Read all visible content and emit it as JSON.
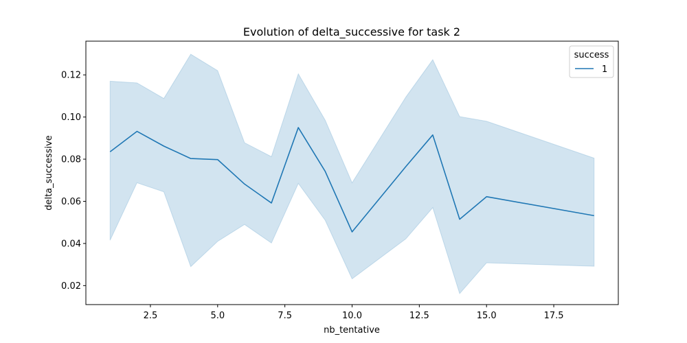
{
  "chart_data": {
    "type": "line",
    "title": "Evolution of delta_successive for task 2",
    "xlabel": "nb_tentative",
    "ylabel": "delta_successive",
    "xlim": [
      0.1,
      19.9
    ],
    "ylim": [
      0.011,
      0.136
    ],
    "x_ticks": [
      2.5,
      5.0,
      7.5,
      10.0,
      12.5,
      15.0,
      17.5
    ],
    "x_tick_labels": [
      "2.5",
      "5.0",
      "7.5",
      "10.0",
      "12.5",
      "15.0",
      "17.5"
    ],
    "y_ticks": [
      0.02,
      0.04,
      0.06,
      0.08,
      0.1,
      0.12
    ],
    "y_tick_labels": [
      "0.02",
      "0.04",
      "0.06",
      "0.08",
      "0.10",
      "0.12"
    ],
    "grid": false,
    "legend": {
      "title": "success",
      "position": "top-right"
    },
    "series": [
      {
        "name": "1",
        "color": "#1f77b4",
        "band_color": "#1f77b4",
        "x": [
          1,
          2,
          3,
          4,
          5,
          6,
          7,
          8,
          9,
          10,
          12,
          13,
          14,
          15,
          19
        ],
        "y": [
          0.0835,
          0.0932,
          0.0862,
          0.0803,
          0.0798,
          0.0682,
          0.0592,
          0.095,
          0.0742,
          0.0455,
          0.0765,
          0.0915,
          0.0515,
          0.0622,
          0.0532
        ],
        "lower": [
          0.0415,
          0.0688,
          0.0645,
          0.029,
          0.041,
          0.049,
          0.0402,
          0.0685,
          0.051,
          0.0232,
          0.0422,
          0.057,
          0.0162,
          0.0308,
          0.0292
        ],
        "upper": [
          0.117,
          0.1162,
          0.1088,
          0.1298,
          0.122,
          0.0878,
          0.0812,
          0.1205,
          0.0985,
          0.0688,
          0.1095,
          0.1272,
          0.1002,
          0.098,
          0.0805
        ]
      }
    ]
  }
}
